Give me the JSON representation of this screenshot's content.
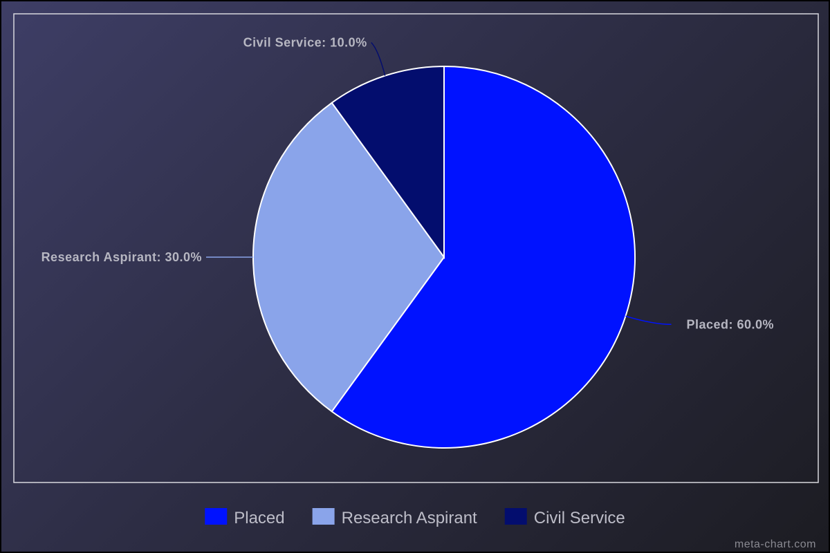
{
  "chart_data": {
    "type": "pie",
    "categories": [
      "Placed",
      "Research Aspirant",
      "Civil Service"
    ],
    "values": [
      60.0,
      30.0,
      10.0
    ],
    "colors": [
      "#0012ff",
      "#8aa4ea",
      "#030d6e"
    ],
    "data_labels": [
      "Placed: 60.0%",
      "Research Aspirant: 30.0%",
      "Civil Service: 10.0%"
    ],
    "start_angle": "12 o'clock",
    "direction": "clockwise",
    "legend": {
      "placement": "bottom",
      "entries": [
        "Placed",
        "Research Aspirant",
        "Civil Service"
      ]
    }
  },
  "watermark": "meta-chart.com"
}
